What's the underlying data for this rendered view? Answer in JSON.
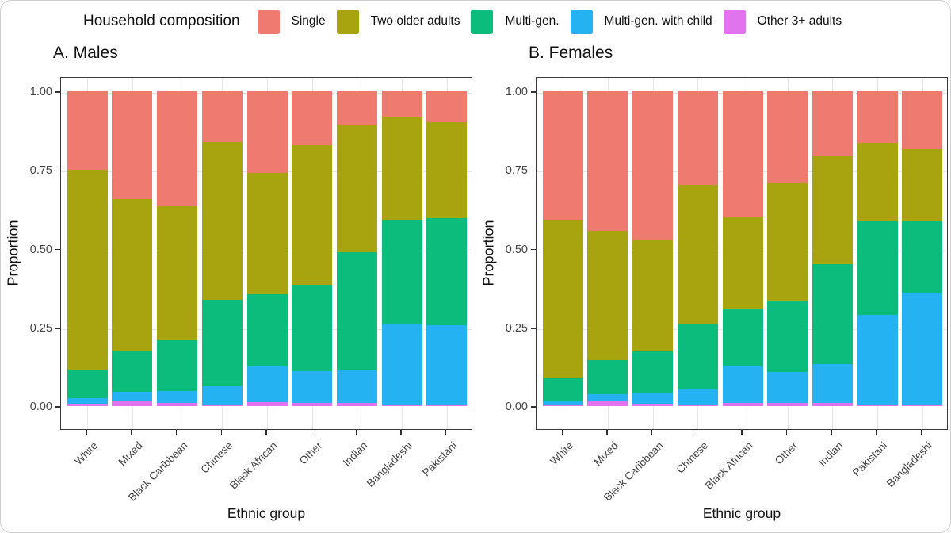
{
  "legend": {
    "title": "Household composition",
    "items": [
      {
        "label": "Single",
        "color": "#EF7B70"
      },
      {
        "label": "Two older adults",
        "color": "#A7A410"
      },
      {
        "label": "Multi-gen.",
        "color": "#0BBC7D"
      },
      {
        "label": "Multi-gen. with child",
        "color": "#25B2F2"
      },
      {
        "label": "Other 3+ adults",
        "color": "#E273EF"
      }
    ]
  },
  "chart_data": [
    {
      "type": "bar",
      "stacked": true,
      "title": "A. Males",
      "xlabel": "Ethnic group",
      "ylabel": "Proportion",
      "ylim": [
        0,
        1
      ],
      "grid": true,
      "yticks": [
        {
          "v": 0.0,
          "label": "0.00"
        },
        {
          "v": 0.25,
          "label": "0.25"
        },
        {
          "v": 0.5,
          "label": "0.50"
        },
        {
          "v": 0.75,
          "label": "0.75"
        },
        {
          "v": 1.0,
          "label": "1.00"
        }
      ],
      "categories": [
        "White",
        "Mixed",
        "Black Caribbean",
        "Chinese",
        "Black African",
        "Other",
        "Indian",
        "Bangladeshi",
        "Pakistani"
      ],
      "series": [
        {
          "name": "Other 3+ adults",
          "color": "#E273EF",
          "values": [
            0.007,
            0.017,
            0.011,
            0.006,
            0.012,
            0.01,
            0.011,
            0.004,
            0.004
          ]
        },
        {
          "name": "Multi-gen. with child",
          "color": "#25B2F2",
          "values": [
            0.018,
            0.028,
            0.036,
            0.056,
            0.113,
            0.102,
            0.105,
            0.258,
            0.253
          ]
        },
        {
          "name": "Multi-gen.",
          "color": "#0BBC7D",
          "values": [
            0.09,
            0.132,
            0.163,
            0.276,
            0.23,
            0.273,
            0.372,
            0.328,
            0.34
          ]
        },
        {
          "name": "Two older adults",
          "color": "#A7A410",
          "values": [
            0.635,
            0.481,
            0.425,
            0.5,
            0.385,
            0.445,
            0.407,
            0.326,
            0.306
          ]
        },
        {
          "name": "Single",
          "color": "#EF7B70",
          "values": [
            0.25,
            0.342,
            0.365,
            0.162,
            0.26,
            0.17,
            0.105,
            0.084,
            0.097
          ]
        }
      ]
    },
    {
      "type": "bar",
      "stacked": true,
      "title": "B. Females",
      "xlabel": "Ethnic group",
      "ylabel": "Proportion",
      "ylim": [
        0,
        1
      ],
      "grid": true,
      "yticks": [
        {
          "v": 0.0,
          "label": "0.00"
        },
        {
          "v": 0.25,
          "label": "0.25"
        },
        {
          "v": 0.5,
          "label": "0.50"
        },
        {
          "v": 0.75,
          "label": "0.75"
        },
        {
          "v": 1.0,
          "label": "1.00"
        }
      ],
      "categories": [
        "White",
        "Mixed",
        "Black Caribbean",
        "Chinese",
        "Black African",
        "Other",
        "Indian",
        "Pakistani",
        "Bangladeshi"
      ],
      "series": [
        {
          "name": "Other 3+ adults",
          "color": "#E273EF",
          "values": [
            0.005,
            0.016,
            0.008,
            0.006,
            0.01,
            0.01,
            0.011,
            0.004,
            0.004
          ]
        },
        {
          "name": "Multi-gen. with child",
          "color": "#25B2F2",
          "values": [
            0.013,
            0.021,
            0.032,
            0.048,
            0.117,
            0.098,
            0.122,
            0.286,
            0.354
          ]
        },
        {
          "name": "Multi-gen.",
          "color": "#0BBC7D",
          "values": [
            0.07,
            0.109,
            0.135,
            0.207,
            0.183,
            0.227,
            0.319,
            0.297,
            0.23
          ]
        },
        {
          "name": "Two older adults",
          "color": "#A7A410",
          "values": [
            0.505,
            0.411,
            0.352,
            0.441,
            0.293,
            0.374,
            0.341,
            0.249,
            0.227
          ]
        },
        {
          "name": "Single",
          "color": "#EF7B70",
          "values": [
            0.407,
            0.443,
            0.473,
            0.298,
            0.397,
            0.291,
            0.207,
            0.164,
            0.185
          ]
        }
      ]
    }
  ]
}
